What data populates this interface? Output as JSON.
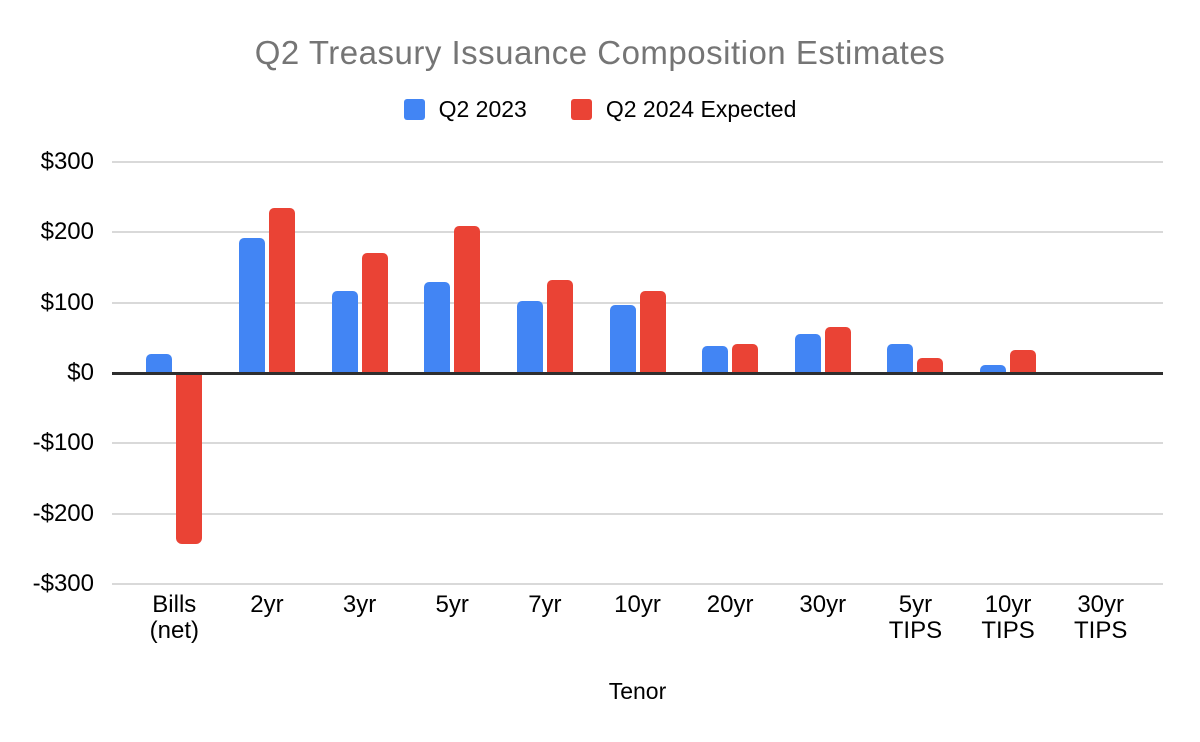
{
  "chart_data": {
    "type": "bar",
    "title": "Q2 Treasury Issuance Composition Estimates",
    "categories": [
      "Bills (net)",
      "2yr",
      "3yr",
      "5yr",
      "7yr",
      "10yr",
      "20yr",
      "30yr",
      "5yr TIPS",
      "10yr TIPS",
      "30yr TIPS"
    ],
    "category_lines": [
      [
        "Bills",
        "(net)"
      ],
      [
        "2yr"
      ],
      [
        "3yr"
      ],
      [
        "5yr"
      ],
      [
        "7yr"
      ],
      [
        "10yr"
      ],
      [
        "20yr"
      ],
      [
        "30yr"
      ],
      [
        "5yr",
        "TIPS"
      ],
      [
        "10yr",
        "TIPS"
      ],
      [
        "30yr",
        "TIPS"
      ]
    ],
    "series": [
      {
        "name": "Q2 2023",
        "color": "#4285f4",
        "values": [
          27,
          192,
          117,
          129,
          103,
          97,
          38,
          55,
          41,
          12,
          0
        ]
      },
      {
        "name": "Q2 2024 Expected",
        "color": "#ea4335",
        "values": [
          -243,
          235,
          171,
          209,
          132,
          117,
          41,
          66,
          21,
          32,
          0
        ]
      }
    ],
    "xlabel": "Tenor",
    "ylabel": "",
    "ylim": [
      -300,
      300
    ],
    "y_tick_values": [
      300,
      200,
      100,
      0,
      -100,
      -200,
      -300
    ],
    "y_tick_labels": [
      "$300",
      "$200",
      "$100",
      "$0",
      "-$100",
      "-$200",
      "-$300"
    ],
    "grid": true,
    "legend_position": "top"
  },
  "colors": {
    "title": "#757575",
    "text": "#000000",
    "gridline": "#d9d9d9",
    "zero_line": "#2e2e2e",
    "background": "#ffffff"
  }
}
